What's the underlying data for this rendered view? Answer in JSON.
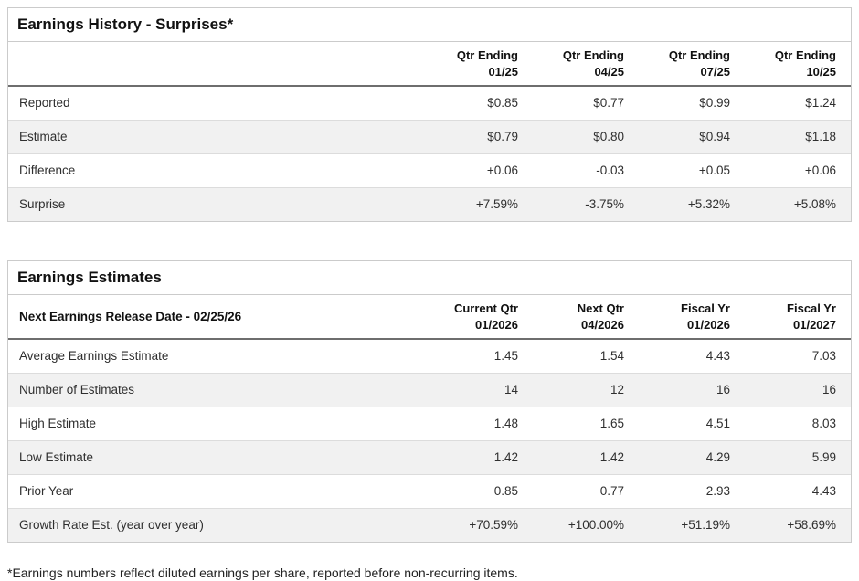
{
  "colors": {
    "positive": "#2f856d",
    "negative": "#c6404a",
    "alt_row_bg": "#f1f1f1",
    "panel_border": "#cbcbcb",
    "header_rule": "#6e6e6e"
  },
  "surprises": {
    "title": "Earnings History - Surprises*",
    "header_label": "",
    "columns": [
      {
        "line1": "Qtr Ending",
        "line2": "01/25"
      },
      {
        "line1": "Qtr Ending",
        "line2": "04/25"
      },
      {
        "line1": "Qtr Ending",
        "line2": "07/25"
      },
      {
        "line1": "Qtr Ending",
        "line2": "10/25"
      }
    ],
    "rows": [
      {
        "label": "Reported",
        "values": [
          {
            "text": "$0.85"
          },
          {
            "text": "$0.77"
          },
          {
            "text": "$0.99"
          },
          {
            "text": "$1.24"
          }
        ]
      },
      {
        "label": "Estimate",
        "values": [
          {
            "text": "$0.79"
          },
          {
            "text": "$0.80"
          },
          {
            "text": "$0.94"
          },
          {
            "text": "$1.18"
          }
        ]
      },
      {
        "label": "Difference",
        "values": [
          {
            "text": "+0.06",
            "tone": "pos"
          },
          {
            "text": "-0.03",
            "tone": "neg"
          },
          {
            "text": "+0.05",
            "tone": "pos"
          },
          {
            "text": "+0.06",
            "tone": "pos"
          }
        ]
      },
      {
        "label": "Surprise",
        "values": [
          {
            "text": "+7.59%",
            "tone": "pos"
          },
          {
            "text": "-3.75%",
            "tone": "neg"
          },
          {
            "text": "+5.32%",
            "tone": "pos"
          },
          {
            "text": "+5.08%",
            "tone": "pos"
          }
        ]
      }
    ]
  },
  "estimates": {
    "title": "Earnings Estimates",
    "header_label": "Next Earnings Release Date - 02/25/26",
    "columns": [
      {
        "line1": "Current Qtr",
        "line2": "01/2026"
      },
      {
        "line1": "Next Qtr",
        "line2": "04/2026"
      },
      {
        "line1": "Fiscal Yr",
        "line2": "01/2026"
      },
      {
        "line1": "Fiscal Yr",
        "line2": "01/2027"
      }
    ],
    "rows": [
      {
        "label": "Average Earnings Estimate",
        "values": [
          {
            "text": "1.45"
          },
          {
            "text": "1.54"
          },
          {
            "text": "4.43"
          },
          {
            "text": "7.03"
          }
        ]
      },
      {
        "label": "Number of Estimates",
        "values": [
          {
            "text": "14"
          },
          {
            "text": "12"
          },
          {
            "text": "16"
          },
          {
            "text": "16"
          }
        ]
      },
      {
        "label": "High Estimate",
        "values": [
          {
            "text": "1.48"
          },
          {
            "text": "1.65"
          },
          {
            "text": "4.51"
          },
          {
            "text": "8.03"
          }
        ]
      },
      {
        "label": "Low Estimate",
        "values": [
          {
            "text": "1.42"
          },
          {
            "text": "1.42"
          },
          {
            "text": "4.29"
          },
          {
            "text": "5.99"
          }
        ]
      },
      {
        "label": "Prior Year",
        "values": [
          {
            "text": "0.85"
          },
          {
            "text": "0.77"
          },
          {
            "text": "2.93"
          },
          {
            "text": "4.43"
          }
        ]
      },
      {
        "label": "Growth Rate Est. (year over year)",
        "values": [
          {
            "text": "+70.59%",
            "tone": "pos"
          },
          {
            "text": "+100.00%",
            "tone": "pos"
          },
          {
            "text": "+51.19%",
            "tone": "pos"
          },
          {
            "text": "+58.69%",
            "tone": "pos"
          }
        ]
      }
    ]
  },
  "footnote": "*Earnings numbers reflect diluted earnings per share, reported before non-recurring items."
}
